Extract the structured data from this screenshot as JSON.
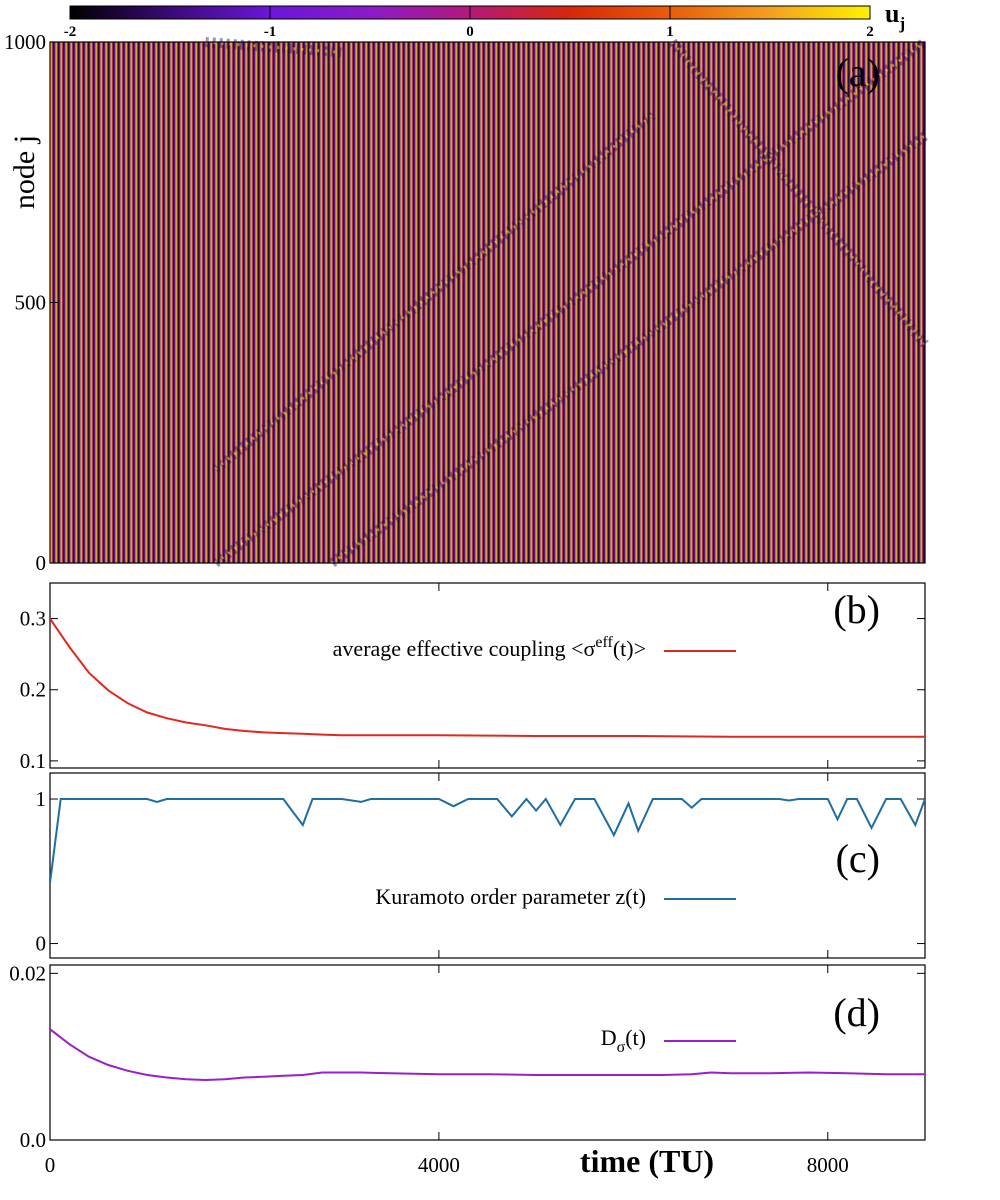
{
  "colorbar": {
    "label_main": "u",
    "label_sub": "j",
    "ticks": [
      "-2",
      "-1",
      "0",
      "1",
      "2"
    ],
    "range": [
      -2,
      2
    ],
    "stops": [
      "#000000",
      "#3a0a78",
      "#6a16d8",
      "#8c1ac8",
      "#b4187a",
      "#d6280a",
      "#e85d0a",
      "#f2a020",
      "#fff200"
    ]
  },
  "chart_data": [
    {
      "panel": "(a)",
      "type": "heatmap",
      "title": "",
      "xlabel": "time (TU)",
      "ylabel": "node j",
      "ylabel_parts": [
        "node",
        "j"
      ],
      "xlim": [
        0,
        9000
      ],
      "ylim": [
        0,
        1000
      ],
      "yticks": [
        "0",
        "500",
        "1000"
      ],
      "zlabel": "u_j",
      "zlim": [
        -2,
        2
      ],
      "stripe_count": 175,
      "defect_bands": [
        {
          "t0": 1700,
          "j0": 0,
          "t1": 9000,
          "j1": 1000
        },
        {
          "t0": 2900,
          "j0": 0,
          "t1": 9000,
          "j1": 820
        },
        {
          "t0": 1700,
          "j0": 180,
          "t1": 6200,
          "j1": 860
        },
        {
          "t0": 6400,
          "j0": 1000,
          "t1": 9000,
          "j1": 420
        },
        {
          "t0": 1600,
          "j0": 1000,
          "t1": 3000,
          "j1": 980
        }
      ]
    },
    {
      "panel": "(b)",
      "type": "line",
      "title": "",
      "xlim": [
        0,
        9000
      ],
      "ylim": [
        0.09,
        0.35
      ],
      "yticks": [
        "0.1",
        "0.2",
        "0.3"
      ],
      "series": [
        {
          "name": "average effective coupling <σ^eff(t)>",
          "color": "#e0281e",
          "x": [
            0,
            200,
            400,
            600,
            800,
            1000,
            1200,
            1400,
            1600,
            1800,
            2000,
            2200,
            2400,
            2600,
            2800,
            3000,
            3500,
            4000,
            5000,
            6000,
            7000,
            8000,
            9000
          ],
          "y": [
            0.3,
            0.26,
            0.224,
            0.199,
            0.181,
            0.168,
            0.16,
            0.154,
            0.15,
            0.145,
            0.142,
            0.14,
            0.139,
            0.138,
            0.137,
            0.136,
            0.136,
            0.136,
            0.135,
            0.135,
            0.134,
            0.134,
            0.134
          ]
        }
      ],
      "legend": {
        "text": "average effective coupling <σ",
        "sup": "eff",
        "tail": "(t)>",
        "position": "top-right"
      }
    },
    {
      "panel": "(c)",
      "type": "line",
      "title": "",
      "xlim": [
        0,
        9000
      ],
      "ylim": [
        -0.1,
        1.18
      ],
      "yticks": [
        "0",
        "1"
      ],
      "series": [
        {
          "name": "Kuramoto order parameter z(t)",
          "color": "#1f6ea3",
          "x": [
            0,
            110,
            200,
            1000,
            1100,
            1200,
            2400,
            2600,
            2700,
            3000,
            3200,
            3300,
            4000,
            4150,
            4300,
            4600,
            4750,
            4900,
            5000,
            5100,
            5250,
            5400,
            5500,
            5600,
            5800,
            5950,
            6050,
            6200,
            6300,
            6500,
            6600,
            6700,
            7500,
            7600,
            7700,
            8000,
            8100,
            8200,
            8300,
            8450,
            8600,
            8750,
            8900,
            9000
          ],
          "y": [
            0.42,
            1.0,
            1.0,
            1.0,
            0.98,
            1.0,
            1.0,
            0.82,
            1.0,
            1.0,
            0.98,
            1.0,
            1.0,
            0.95,
            1.0,
            1.0,
            0.88,
            1.0,
            0.92,
            1.0,
            0.82,
            1.0,
            1.0,
            1.0,
            0.75,
            0.97,
            0.78,
            1.0,
            1.0,
            1.0,
            0.94,
            1.0,
            1.0,
            0.99,
            1.0,
            1.0,
            0.86,
            1.0,
            1.0,
            0.8,
            1.0,
            1.0,
            0.82,
            1.0
          ]
        }
      ],
      "legend": {
        "text": "Kuramoto order parameter z(t)",
        "position": "lower-right"
      }
    },
    {
      "panel": "(d)",
      "type": "line",
      "title": "",
      "xlabel": "time (TU)",
      "xlim": [
        0,
        9000
      ],
      "ylim": [
        0,
        0.021
      ],
      "xticks": [
        "0",
        "4000",
        "8000"
      ],
      "yticks": [
        "0.0",
        "0.02"
      ],
      "series": [
        {
          "name": "D_σ(t)",
          "color": "#9b1fc8",
          "x": [
            0,
            200,
            400,
            600,
            800,
            1000,
            1200,
            1400,
            1600,
            1800,
            2000,
            2200,
            2400,
            2600,
            2800,
            3000,
            3200,
            3500,
            4000,
            4500,
            5000,
            5500,
            6000,
            6300,
            6600,
            6800,
            7000,
            7400,
            7800,
            8200,
            8600,
            9000
          ],
          "y": [
            0.0133,
            0.0115,
            0.01,
            0.009,
            0.0083,
            0.0078,
            0.0075,
            0.0073,
            0.0072,
            0.0073,
            0.0075,
            0.0076,
            0.0077,
            0.0078,
            0.0081,
            0.0081,
            0.0081,
            0.008,
            0.0079,
            0.0079,
            0.0078,
            0.0078,
            0.0078,
            0.0078,
            0.0079,
            0.0081,
            0.008,
            0.008,
            0.0081,
            0.008,
            0.0079,
            0.0079
          ]
        }
      ],
      "legend": {
        "text": "D",
        "sub": "σ",
        "tail": "(t)",
        "position": "top-right"
      }
    }
  ]
}
